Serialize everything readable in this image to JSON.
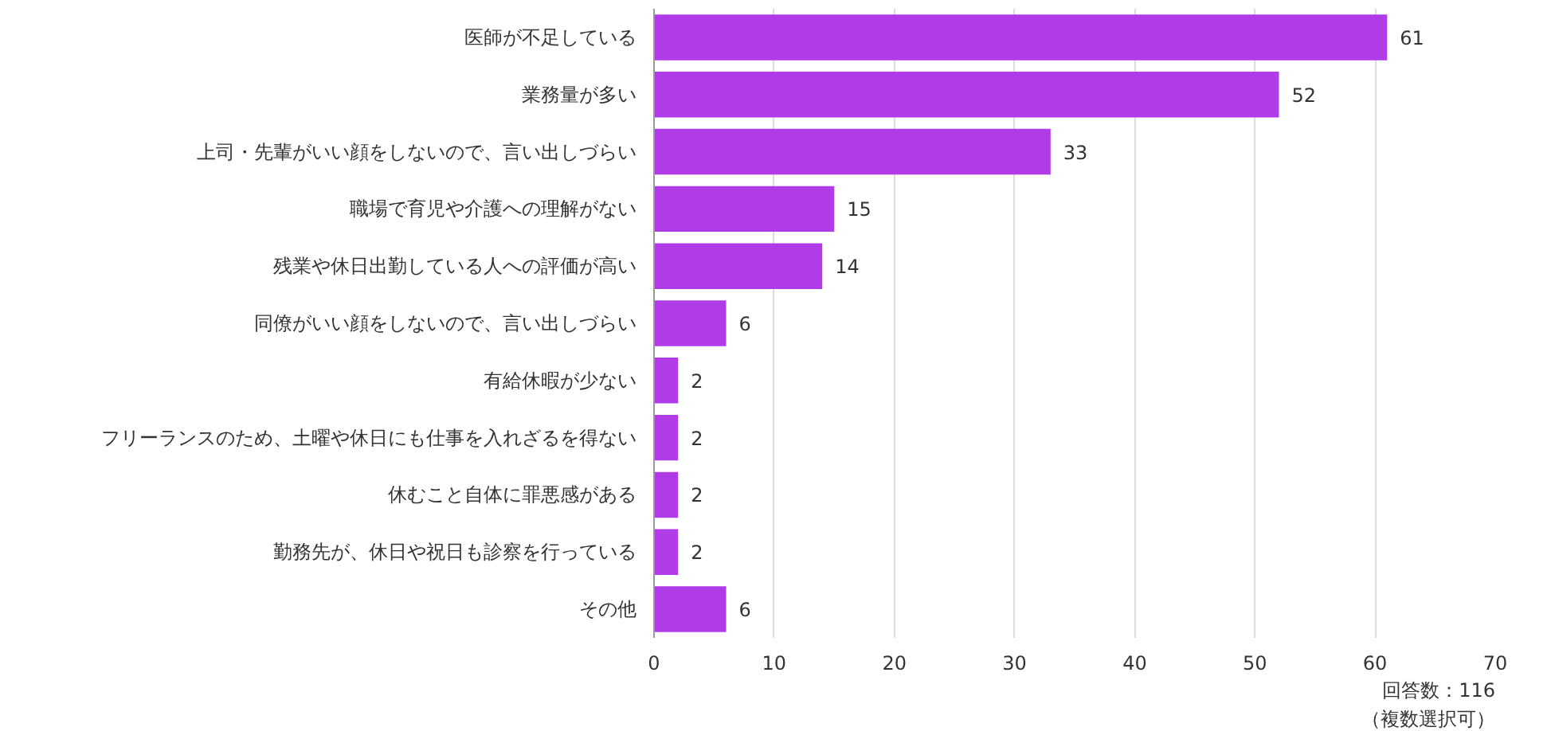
{
  "chart_data": {
    "type": "bar",
    "orientation": "horizontal",
    "categories": [
      "医師が不足している",
      "業務量が多い",
      "上司・先輩がいい顔をしないので、言い出しづらい",
      "職場で育児や介護への理解がない",
      "残業や休日出勤している人への評価が高い",
      "同僚がいい顔をしないので、言い出しづらい",
      "有給休暇が少ない",
      "フリーランスのため、土曜や休日にも仕事を入れざるを得ない",
      "休むこと自体に罪悪感がある",
      "勤務先が、休日や祝日も診察を行っている",
      "その他"
    ],
    "values": [
      61,
      52,
      33,
      15,
      14,
      6,
      2,
      2,
      2,
      2,
      6
    ],
    "color": "#b03ce8",
    "xlim": [
      0,
      70
    ],
    "xticks": [
      0,
      10,
      20,
      30,
      40,
      50,
      60,
      70
    ],
    "grid": "x",
    "data_labels": true,
    "annotations": [
      "回答数：116",
      "（複数選択可）"
    ]
  }
}
